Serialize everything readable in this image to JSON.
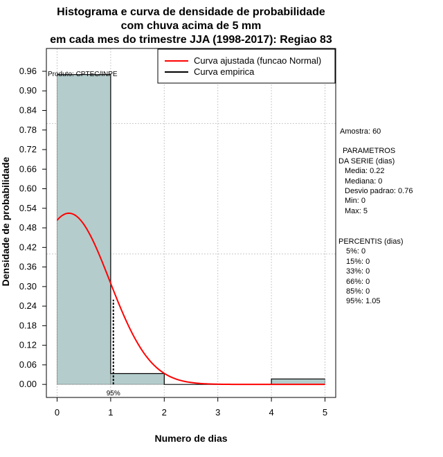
{
  "chart_data": {
    "type": "histogram",
    "title_lines": [
      "Histograma e curva de densidade de probabilidade",
      "com chuva acima de 5 mm",
      "em cada mes do trimestre JJA (1998-2017): Regiao 83"
    ],
    "xlabel": "Numero de dias",
    "ylabel": "Densidade de probabilidade",
    "xlim": [
      -0.2,
      5.2
    ],
    "ylim": [
      -0.04,
      1.03
    ],
    "x_ticks": [
      0,
      1,
      2,
      3,
      4,
      5
    ],
    "y_ticks": [
      0.0,
      0.06,
      0.12,
      0.18,
      0.24,
      0.3,
      0.36,
      0.42,
      0.48,
      0.54,
      0.6,
      0.66,
      0.72,
      0.78,
      0.84,
      0.9,
      0.96
    ],
    "y_tick_labels": [
      "0.00",
      "0.06",
      "0.12",
      "0.18",
      "0.24",
      "0.30",
      "0.36",
      "0.42",
      "0.48",
      "0.54",
      "0.60",
      "0.66",
      "0.72",
      "0.78",
      "0.84",
      "0.90",
      "0.96"
    ],
    "bars": [
      {
        "x0": 0,
        "x1": 1,
        "density": 0.95
      },
      {
        "x0": 1,
        "x1": 2,
        "density": 0.0333
      },
      {
        "x0": 2,
        "x1": 3,
        "density": 0.0
      },
      {
        "x0": 3,
        "x1": 4,
        "density": 0.0
      },
      {
        "x0": 4,
        "x1": 5,
        "density": 0.0167
      }
    ],
    "bar_color": "#b4cccc",
    "normal_curve": {
      "name": "Curva ajustada (funcao Normal)",
      "mean": 0.22,
      "sd": 0.76,
      "x_from": 0,
      "x_to": 5,
      "color": "#ff0000"
    },
    "empirical_curve": {
      "name": "Curva empirica",
      "color": "#000000"
    },
    "percentile_marker": {
      "x": 1.05,
      "label": "95%"
    },
    "gridlines_y": [
      0.4,
      0.8
    ],
    "credit": "Produto: CPTEC/INPE",
    "legend_position": "top-right"
  },
  "stats_panel": {
    "sample": "Amostra: 60",
    "params_title_1": "PARAMETROS",
    "params_title_2": "DA SERIE (dias)",
    "media": "Media: 0.22",
    "mediana": "Mediana: 0",
    "desvio": "Desvio padrao: 0.76",
    "min": "Min: 0",
    "max": "Max: 5",
    "percentis_title": "PERCENTIS (dias)",
    "p5": "5%: 0",
    "p15": "15%: 0",
    "p33": "33%: 0",
    "p66": "66%: 0",
    "p85": "85%: 0",
    "p95": "95%: 1.05"
  }
}
